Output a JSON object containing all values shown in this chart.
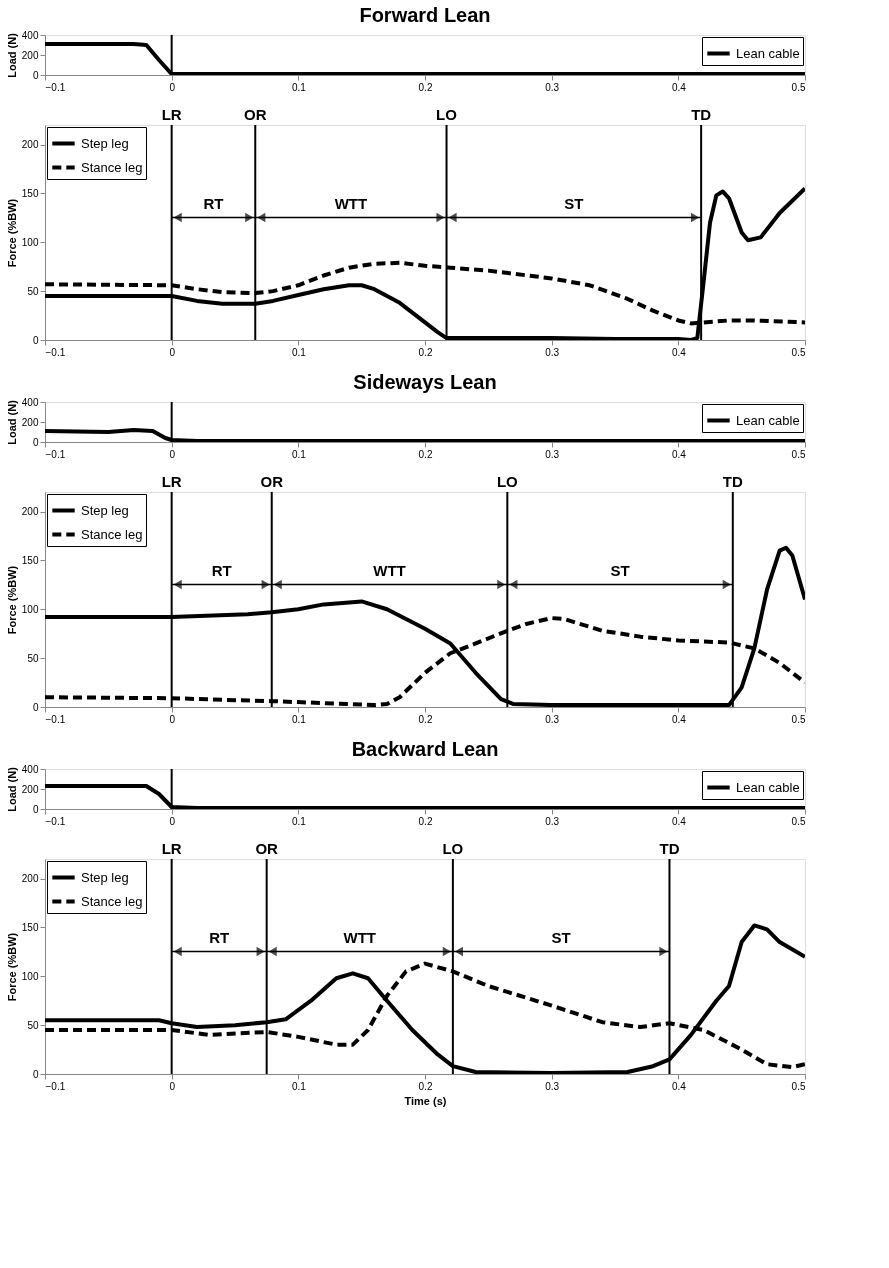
{
  "chart_data": [
    {
      "type": "line",
      "title": "Forward Lean",
      "ylabel": "Load (N)",
      "xlim": [
        -0.1,
        0.5
      ],
      "xticks": [
        -0.1,
        0,
        0.1,
        0.2,
        0.3,
        0.4,
        0.5
      ],
      "ylim": [
        0,
        400
      ],
      "yticks": [
        0,
        200,
        400
      ],
      "legend": "top right",
      "ref_lines": [
        {
          "axis": "x",
          "value": 0
        }
      ],
      "series": [
        {
          "name": "Lean cable",
          "color": "#000000",
          "x": [
            -0.1,
            -0.03,
            -0.02,
            -0.01,
            0,
            0.01,
            0.5
          ],
          "line_style": "solid",
          "values": [
            310,
            310,
            300,
            150,
            10,
            10,
            10
          ]
        }
      ]
    },
    {
      "type": "line",
      "ylabel": "Force (%BW)",
      "xlim": [
        -0.1,
        0.5
      ],
      "xticks": [
        -0.1,
        0,
        0.1,
        0.2,
        0.3,
        0.4,
        0.5
      ],
      "ylim": [
        0,
        220
      ],
      "yticks": [
        0,
        50,
        100,
        150,
        200
      ],
      "legend": "top left",
      "ref_lines": [
        {
          "axis": "x",
          "value": 0,
          "label": "LR"
        },
        {
          "axis": "x",
          "value": 0.066,
          "label": "OR"
        },
        {
          "axis": "x",
          "value": 0.217,
          "label": "LO"
        },
        {
          "axis": "x",
          "value": 0.418,
          "label": "TD"
        }
      ],
      "annotations": [
        "RT",
        "WTT",
        "ST"
      ],
      "series": [
        {
          "name": "Step leg",
          "color": "#000000",
          "line_style": "solid",
          "x": [
            -0.1,
            0,
            0.02,
            0.04,
            0.066,
            0.08,
            0.1,
            0.12,
            0.14,
            0.15,
            0.16,
            0.18,
            0.2,
            0.21,
            0.217,
            0.23,
            0.3,
            0.35,
            0.4,
            0.41,
            0.415,
            0.42,
            0.425,
            0.43,
            0.435,
            0.44,
            0.45,
            0.455,
            0.465,
            0.48,
            0.5
          ],
          "values": [
            45,
            45,
            40,
            37,
            37,
            40,
            46,
            52,
            56,
            56,
            52,
            38,
            18,
            8,
            2,
            2,
            2,
            1,
            1,
            0,
            2,
            60,
            120,
            148,
            152,
            145,
            110,
            102,
            105,
            130,
            155
          ]
        },
        {
          "name": "Stance leg",
          "color": "#000000",
          "line_style": "dashed",
          "x": [
            -0.1,
            0,
            0.02,
            0.04,
            0.066,
            0.08,
            0.1,
            0.12,
            0.14,
            0.16,
            0.18,
            0.2,
            0.22,
            0.25,
            0.3,
            0.33,
            0.36,
            0.38,
            0.4,
            0.41,
            0.42,
            0.44,
            0.46,
            0.5
          ],
          "values": [
            57,
            56,
            52,
            49,
            48,
            50,
            56,
            66,
            74,
            78,
            79,
            76,
            74,
            71,
            63,
            56,
            42,
            30,
            20,
            17,
            18,
            20,
            20,
            18
          ]
        }
      ]
    },
    {
      "type": "line",
      "title": "Sideways Lean",
      "ylabel": "Load (N)",
      "xlim": [
        -0.1,
        0.5
      ],
      "xticks": [
        -0.1,
        0,
        0.1,
        0.2,
        0.3,
        0.4,
        0.5
      ],
      "ylim": [
        0,
        400
      ],
      "yticks": [
        0,
        200,
        400
      ],
      "legend": "top right",
      "ref_lines": [
        {
          "axis": "x",
          "value": 0
        }
      ],
      "series": [
        {
          "name": "Lean cable",
          "color": "#000000",
          "x": [
            -0.1,
            -0.05,
            -0.03,
            -0.015,
            -0.005,
            0,
            0.02,
            0.5
          ],
          "line_style": "solid",
          "values": [
            110,
            100,
            120,
            110,
            40,
            20,
            10,
            10
          ]
        }
      ]
    },
    {
      "type": "line",
      "ylabel": "Force (%BW)",
      "xlim": [
        -0.1,
        0.5
      ],
      "xticks": [
        -0.1,
        0,
        0.1,
        0.2,
        0.3,
        0.4,
        0.5
      ],
      "ylim": [
        0,
        220
      ],
      "yticks": [
        0,
        50,
        100,
        150,
        200
      ],
      "legend": "top left",
      "ref_lines": [
        {
          "axis": "x",
          "value": 0,
          "label": "LR"
        },
        {
          "axis": "x",
          "value": 0.079,
          "label": "OR"
        },
        {
          "axis": "x",
          "value": 0.265,
          "label": "LO"
        },
        {
          "axis": "x",
          "value": 0.443,
          "label": "TD"
        }
      ],
      "annotations": [
        "RT",
        "WTT",
        "ST"
      ],
      "series": [
        {
          "name": "Step leg",
          "color": "#000000",
          "line_style": "solid",
          "x": [
            -0.1,
            0,
            0.06,
            0.079,
            0.1,
            0.12,
            0.15,
            0.17,
            0.2,
            0.22,
            0.24,
            0.26,
            0.27,
            0.3,
            0.44,
            0.45,
            0.46,
            0.47,
            0.48,
            0.485,
            0.49,
            0.5
          ],
          "values": [
            92,
            92,
            95,
            97,
            100,
            105,
            108,
            100,
            80,
            65,
            35,
            8,
            3,
            2,
            2,
            20,
            60,
            120,
            160,
            163,
            155,
            110
          ]
        },
        {
          "name": "Stance leg",
          "color": "#000000",
          "line_style": "dashed",
          "x": [
            -0.1,
            0,
            0.05,
            0.079,
            0.1,
            0.14,
            0.16,
            0.17,
            0.18,
            0.2,
            0.22,
            0.24,
            0.265,
            0.28,
            0.3,
            0.31,
            0.34,
            0.37,
            0.4,
            0.44,
            0.46,
            0.48,
            0.5
          ],
          "values": [
            10,
            9,
            7,
            6,
            5,
            3,
            2,
            3,
            10,
            35,
            55,
            65,
            78,
            85,
            91,
            90,
            78,
            72,
            68,
            66,
            60,
            45,
            25
          ]
        }
      ]
    },
    {
      "type": "line",
      "title": "Backward Lean",
      "ylabel": "Load (N)",
      "xlim": [
        -0.1,
        0.5
      ],
      "xticks": [
        -0.1,
        0,
        0.1,
        0.2,
        0.3,
        0.4,
        0.5
      ],
      "ylim": [
        0,
        400
      ],
      "yticks": [
        0,
        200,
        400
      ],
      "legend": "top right",
      "ref_lines": [
        {
          "axis": "x",
          "value": 0
        }
      ],
      "series": [
        {
          "name": "Lean cable",
          "color": "#000000",
          "x": [
            -0.1,
            -0.02,
            -0.01,
            0,
            0.02,
            0.5
          ],
          "line_style": "solid",
          "values": [
            230,
            230,
            150,
            20,
            10,
            10
          ]
        }
      ]
    },
    {
      "type": "line",
      "xlabel": "Time (s)",
      "ylabel": "Force (%BW)",
      "xlim": [
        -0.1,
        0.5
      ],
      "xticks": [
        -0.1,
        0,
        0.1,
        0.2,
        0.3,
        0.4,
        0.5
      ],
      "ylim": [
        0,
        220
      ],
      "yticks": [
        0,
        50,
        100,
        150,
        200
      ],
      "legend": "top left",
      "ref_lines": [
        {
          "axis": "x",
          "value": 0,
          "label": "LR"
        },
        {
          "axis": "x",
          "value": 0.075,
          "label": "OR"
        },
        {
          "axis": "x",
          "value": 0.222,
          "label": "LO"
        },
        {
          "axis": "x",
          "value": 0.393,
          "label": "TD"
        }
      ],
      "annotations": [
        "RT",
        "WTT",
        "ST"
      ],
      "series": [
        {
          "name": "Step leg",
          "color": "#000000",
          "line_style": "solid",
          "x": [
            -0.1,
            -0.01,
            0,
            0.02,
            0.05,
            0.075,
            0.09,
            0.11,
            0.13,
            0.143,
            0.155,
            0.17,
            0.19,
            0.21,
            0.222,
            0.24,
            0.3,
            0.36,
            0.38,
            0.393,
            0.41,
            0.43,
            0.44,
            0.45,
            0.46,
            0.47,
            0.48,
            0.5
          ],
          "values": [
            55,
            55,
            52,
            48,
            50,
            53,
            56,
            75,
            98,
            103,
            98,
            75,
            45,
            20,
            8,
            2,
            1,
            2,
            8,
            15,
            40,
            75,
            90,
            135,
            152,
            148,
            135,
            120
          ]
        },
        {
          "name": "Stance leg",
          "color": "#000000",
          "line_style": "dashed",
          "x": [
            -0.1,
            0,
            0.03,
            0.075,
            0.1,
            0.13,
            0.143,
            0.155,
            0.17,
            0.185,
            0.2,
            0.222,
            0.25,
            0.3,
            0.34,
            0.37,
            0.393,
            0.42,
            0.45,
            0.47,
            0.49,
            0.5
          ],
          "values": [
            45,
            45,
            40,
            43,
            38,
            30,
            30,
            45,
            80,
            105,
            113,
            105,
            90,
            70,
            53,
            48,
            52,
            45,
            25,
            10,
            7,
            10
          ]
        }
      ]
    }
  ]
}
